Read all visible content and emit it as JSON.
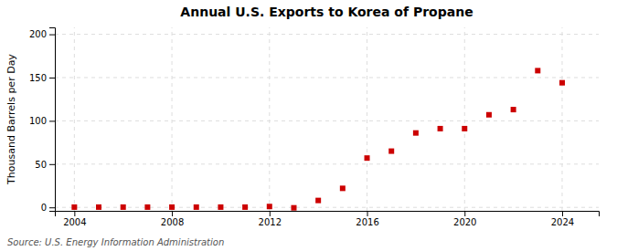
{
  "chart_data": {
    "type": "scatter",
    "title": "Annual U.S. Exports to Korea of Propane",
    "ylabel": "Thousand Barrels per Day",
    "source": "Source: U.S. Energy Information Administration",
    "x": [
      2004,
      2005,
      2006,
      2007,
      2008,
      2009,
      2010,
      2011,
      2012,
      2013,
      2014,
      2015,
      2016,
      2017,
      2018,
      2019,
      2020,
      2021,
      2022,
      2023,
      2024
    ],
    "values": [
      0.3,
      0.3,
      0.3,
      0.3,
      0.3,
      0.3,
      0.3,
      0.3,
      1.0,
      -0.5,
      8.0,
      22.0,
      57.0,
      65.0,
      86.0,
      91.0,
      91.0,
      107.0,
      113.0,
      158.0,
      144.0
    ],
    "color": "#cc0000",
    "marker": "square",
    "xlim": [
      2003.2,
      2025.5
    ],
    "xticks": [
      2004,
      2008,
      2012,
      2016,
      2020,
      2024
    ],
    "ylim": [
      -4,
      208
    ],
    "yticks": [
      0,
      50,
      100,
      150,
      200
    ],
    "grid": true
  }
}
